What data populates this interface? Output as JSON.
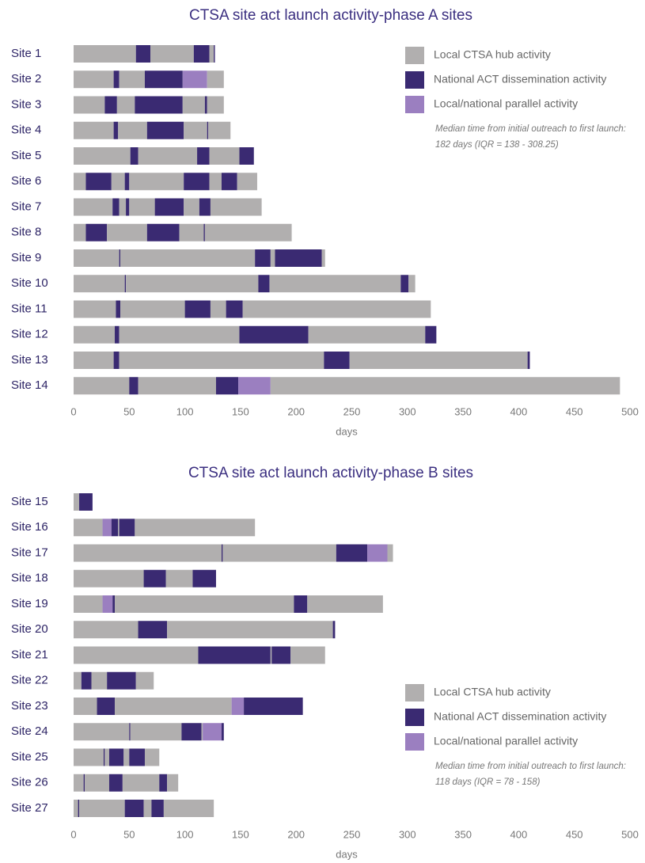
{
  "chart_data": [
    {
      "type": "gantt",
      "title": "CTSA site act launch activity-phase A sites",
      "xlabel": "days",
      "xlim": [
        0,
        500
      ],
      "xticks": [
        0,
        50,
        100,
        150,
        200,
        250,
        300,
        350,
        400,
        450,
        500
      ],
      "series": [
        {
          "name": "Local CTSA hub activity",
          "color": "#b1afaf"
        },
        {
          "name": "National ACT dissemination activity",
          "color": "#3a2a72"
        },
        {
          "name": "Local/national parallel activity",
          "color": "#9b7fc0"
        }
      ],
      "annotation": [
        "Median time from initial outreach to first launch:",
        "182 days (IQR = 138 - 308.25)"
      ],
      "rows": [
        {
          "label": "Site 1",
          "activities": [
            0,
            1,
            0,
            1,
            0,
            1
          ],
          "values": [
            56,
            13,
            39,
            14,
            4,
            1
          ]
        },
        {
          "label": "Site 2",
          "activities": [
            0,
            1,
            0,
            1,
            2,
            0
          ],
          "values": [
            36,
            5,
            23,
            34,
            22,
            15
          ]
        },
        {
          "label": "Site 3",
          "activities": [
            0,
            1,
            0,
            1,
            0,
            1,
            0
          ],
          "values": [
            28,
            11,
            16,
            43,
            20,
            2,
            15
          ]
        },
        {
          "label": "Site 4",
          "activities": [
            0,
            1,
            0,
            1,
            0,
            1,
            0
          ],
          "values": [
            36,
            4,
            26,
            33,
            21,
            1,
            20
          ]
        },
        {
          "label": "Site 5",
          "activities": [
            0,
            1,
            0,
            1,
            0,
            1
          ],
          "values": [
            51,
            7,
            53,
            11,
            27,
            13
          ]
        },
        {
          "label": "Site 6",
          "activities": [
            0,
            1,
            0,
            1,
            0,
            1,
            0,
            1,
            0
          ],
          "values": [
            11,
            23,
            12,
            4,
            49,
            23,
            11,
            14,
            18
          ]
        },
        {
          "label": "Site 7",
          "activities": [
            0,
            1,
            0,
            1,
            0,
            1,
            0,
            1,
            0
          ],
          "values": [
            35,
            6,
            6,
            3,
            23,
            26,
            14,
            10,
            46
          ]
        },
        {
          "label": "Site 8",
          "activities": [
            0,
            1,
            0,
            1,
            0,
            1,
            0
          ],
          "values": [
            11,
            19,
            36,
            29,
            22,
            1,
            78
          ]
        },
        {
          "label": "Site 9",
          "activities": [
            0,
            1,
            0,
            1,
            0,
            1,
            0
          ],
          "values": [
            41,
            1,
            121,
            14,
            4,
            42,
            3
          ]
        },
        {
          "label": "Site 10",
          "activities": [
            0,
            1,
            0,
            1,
            0,
            1,
            0
          ],
          "values": [
            46,
            1,
            119,
            10,
            118,
            7,
            6
          ]
        },
        {
          "label": "Site 11",
          "activities": [
            0,
            1,
            0,
            1,
            0,
            1,
            0
          ],
          "values": [
            38,
            4,
            58,
            23,
            14,
            15,
            169
          ]
        },
        {
          "label": "Site 12",
          "activities": [
            0,
            1,
            0,
            1,
            0,
            1
          ],
          "values": [
            37,
            4,
            108,
            62,
            105,
            10
          ]
        },
        {
          "label": "Site 13",
          "activities": [
            0,
            1,
            0,
            1,
            0,
            1
          ],
          "values": [
            36,
            5,
            184,
            23,
            160,
            2
          ]
        },
        {
          "label": "Site 14",
          "activities": [
            0,
            1,
            0,
            1,
            2,
            0
          ],
          "values": [
            50,
            8,
            70,
            20,
            29,
            314
          ]
        }
      ]
    },
    {
      "type": "gantt",
      "title": "CTSA site act launch activity-phase B sites",
      "xlabel": "days",
      "xlim": [
        0,
        500
      ],
      "xticks": [
        0,
        50,
        100,
        150,
        200,
        250,
        300,
        350,
        400,
        450,
        500
      ],
      "series": [
        {
          "name": "Local CTSA hub activity",
          "color": "#b1afaf"
        },
        {
          "name": "National ACT dissemination activity",
          "color": "#3a2a72"
        },
        {
          "name": "Local/national parallel activity",
          "color": "#9b7fc0"
        }
      ],
      "annotation": [
        "Median time from initial outreach to first launch:",
        "118 days (IQR = 78 - 158)"
      ],
      "rows": [
        {
          "label": "Site 15",
          "activities": [
            0,
            1
          ],
          "values": [
            5,
            12
          ]
        },
        {
          "label": "Site 16",
          "activities": [
            0,
            2,
            1,
            0,
            1,
            0
          ],
          "values": [
            26,
            8,
            6,
            1,
            14,
            108
          ]
        },
        {
          "label": "Site 17",
          "activities": [
            0,
            1,
            0,
            1,
            2,
            0
          ],
          "values": [
            133,
            1,
            102,
            28,
            18,
            5
          ]
        },
        {
          "label": "Site 18",
          "activities": [
            0,
            1,
            0,
            1
          ],
          "values": [
            63,
            20,
            24,
            21
          ]
        },
        {
          "label": "Site 19",
          "activities": [
            0,
            2,
            1,
            0,
            1,
            0
          ],
          "values": [
            26,
            9,
            2,
            161,
            12,
            68
          ]
        },
        {
          "label": "Site 20",
          "activities": [
            0,
            1,
            0,
            1
          ],
          "values": [
            58,
            26,
            149,
            2
          ]
        },
        {
          "label": "Site 21",
          "activities": [
            0,
            1,
            0,
            1,
            0
          ],
          "values": [
            112,
            65,
            1,
            17,
            31
          ]
        },
        {
          "label": "Site 22",
          "activities": [
            0,
            1,
            0,
            1,
            0
          ],
          "values": [
            7,
            9,
            14,
            26,
            16
          ]
        },
        {
          "label": "Site 23",
          "activities": [
            0,
            1,
            0,
            2,
            1
          ],
          "values": [
            21,
            16,
            105,
            11,
            53
          ]
        },
        {
          "label": "Site 24",
          "activities": [
            0,
            1,
            0,
            1,
            0,
            2,
            1
          ],
          "values": [
            50,
            1,
            46,
            18,
            1,
            17,
            2
          ]
        },
        {
          "label": "Site 25",
          "activities": [
            0,
            1,
            0,
            1,
            0,
            1,
            0
          ],
          "values": [
            27,
            1,
            4,
            13,
            5,
            14,
            13
          ]
        },
        {
          "label": "Site 26",
          "activities": [
            0,
            1,
            0,
            1,
            0,
            1,
            0
          ],
          "values": [
            9,
            1,
            22,
            12,
            33,
            7,
            10
          ]
        },
        {
          "label": "Site 27",
          "activities": [
            0,
            1,
            0,
            1,
            0,
            1,
            0
          ],
          "values": [
            4,
            1,
            41,
            17,
            7,
            11,
            45
          ]
        }
      ]
    }
  ]
}
